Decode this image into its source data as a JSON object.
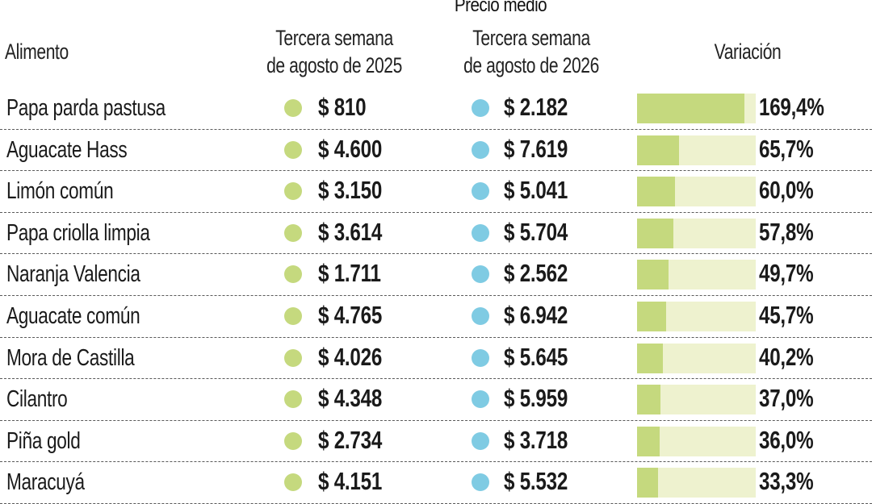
{
  "colors": {
    "dot_2025": "#c5d97e",
    "dot_2026": "#7fcbe3",
    "bar_fill": "#c5d97e",
    "bar_track": "#eef2cf"
  },
  "header": {
    "supertitle": "Precio medio",
    "food_label": "Alimento",
    "col1_line1": "Tercera semana",
    "col1_line2": "de agosto de 2025",
    "col2_line1": "Tercera semana",
    "col2_line2": "de agosto de 2026",
    "variation_label": "Variación"
  },
  "chart_data": {
    "type": "table",
    "bar_max_percent": 169.4,
    "columns": [
      "Alimento",
      "Tercera semana de agosto de 2025",
      "Tercera semana de agosto de 2026",
      "Variación"
    ],
    "rows": [
      {
        "name": "Papa parda pastusa",
        "price_2025": "$ 810",
        "price_2026": "$ 2.182",
        "variation_label": "169,4%",
        "variation": 169.4
      },
      {
        "name": "Aguacate Hass",
        "price_2025": "$ 4.600",
        "price_2026": "$ 7.619",
        "variation_label": "65,7%",
        "variation": 65.7
      },
      {
        "name": "Limón común",
        "price_2025": "$ 3.150",
        "price_2026": "$ 5.041",
        "variation_label": "60,0%",
        "variation": 60.0
      },
      {
        "name": "Papa criolla limpia",
        "price_2025": "$ 3.614",
        "price_2026": "$ 5.704",
        "variation_label": "57,8%",
        "variation": 57.8
      },
      {
        "name": "Naranja Valencia",
        "price_2025": "$ 1.711",
        "price_2026": "$ 2.562",
        "variation_label": "49,7%",
        "variation": 49.7
      },
      {
        "name": "Aguacate común",
        "price_2025": "$ 4.765",
        "price_2026": "$ 6.942",
        "variation_label": "45,7%",
        "variation": 45.7
      },
      {
        "name": "Mora de Castilla",
        "price_2025": "$ 4.026",
        "price_2026": "$ 5.645",
        "variation_label": "40,2%",
        "variation": 40.2
      },
      {
        "name": "Cilantro",
        "price_2025": "$ 4.348",
        "price_2026": "$ 5.959",
        "variation_label": "37,0%",
        "variation": 37.0
      },
      {
        "name": "Piña gold",
        "price_2025": "$ 2.734",
        "price_2026": "$ 3.718",
        "variation_label": "36,0%",
        "variation": 36.0
      },
      {
        "name": "Maracuyá",
        "price_2025": "$ 4.151",
        "price_2026": "$ 5.532",
        "variation_label": "33,3%",
        "variation": 33.3
      }
    ]
  }
}
